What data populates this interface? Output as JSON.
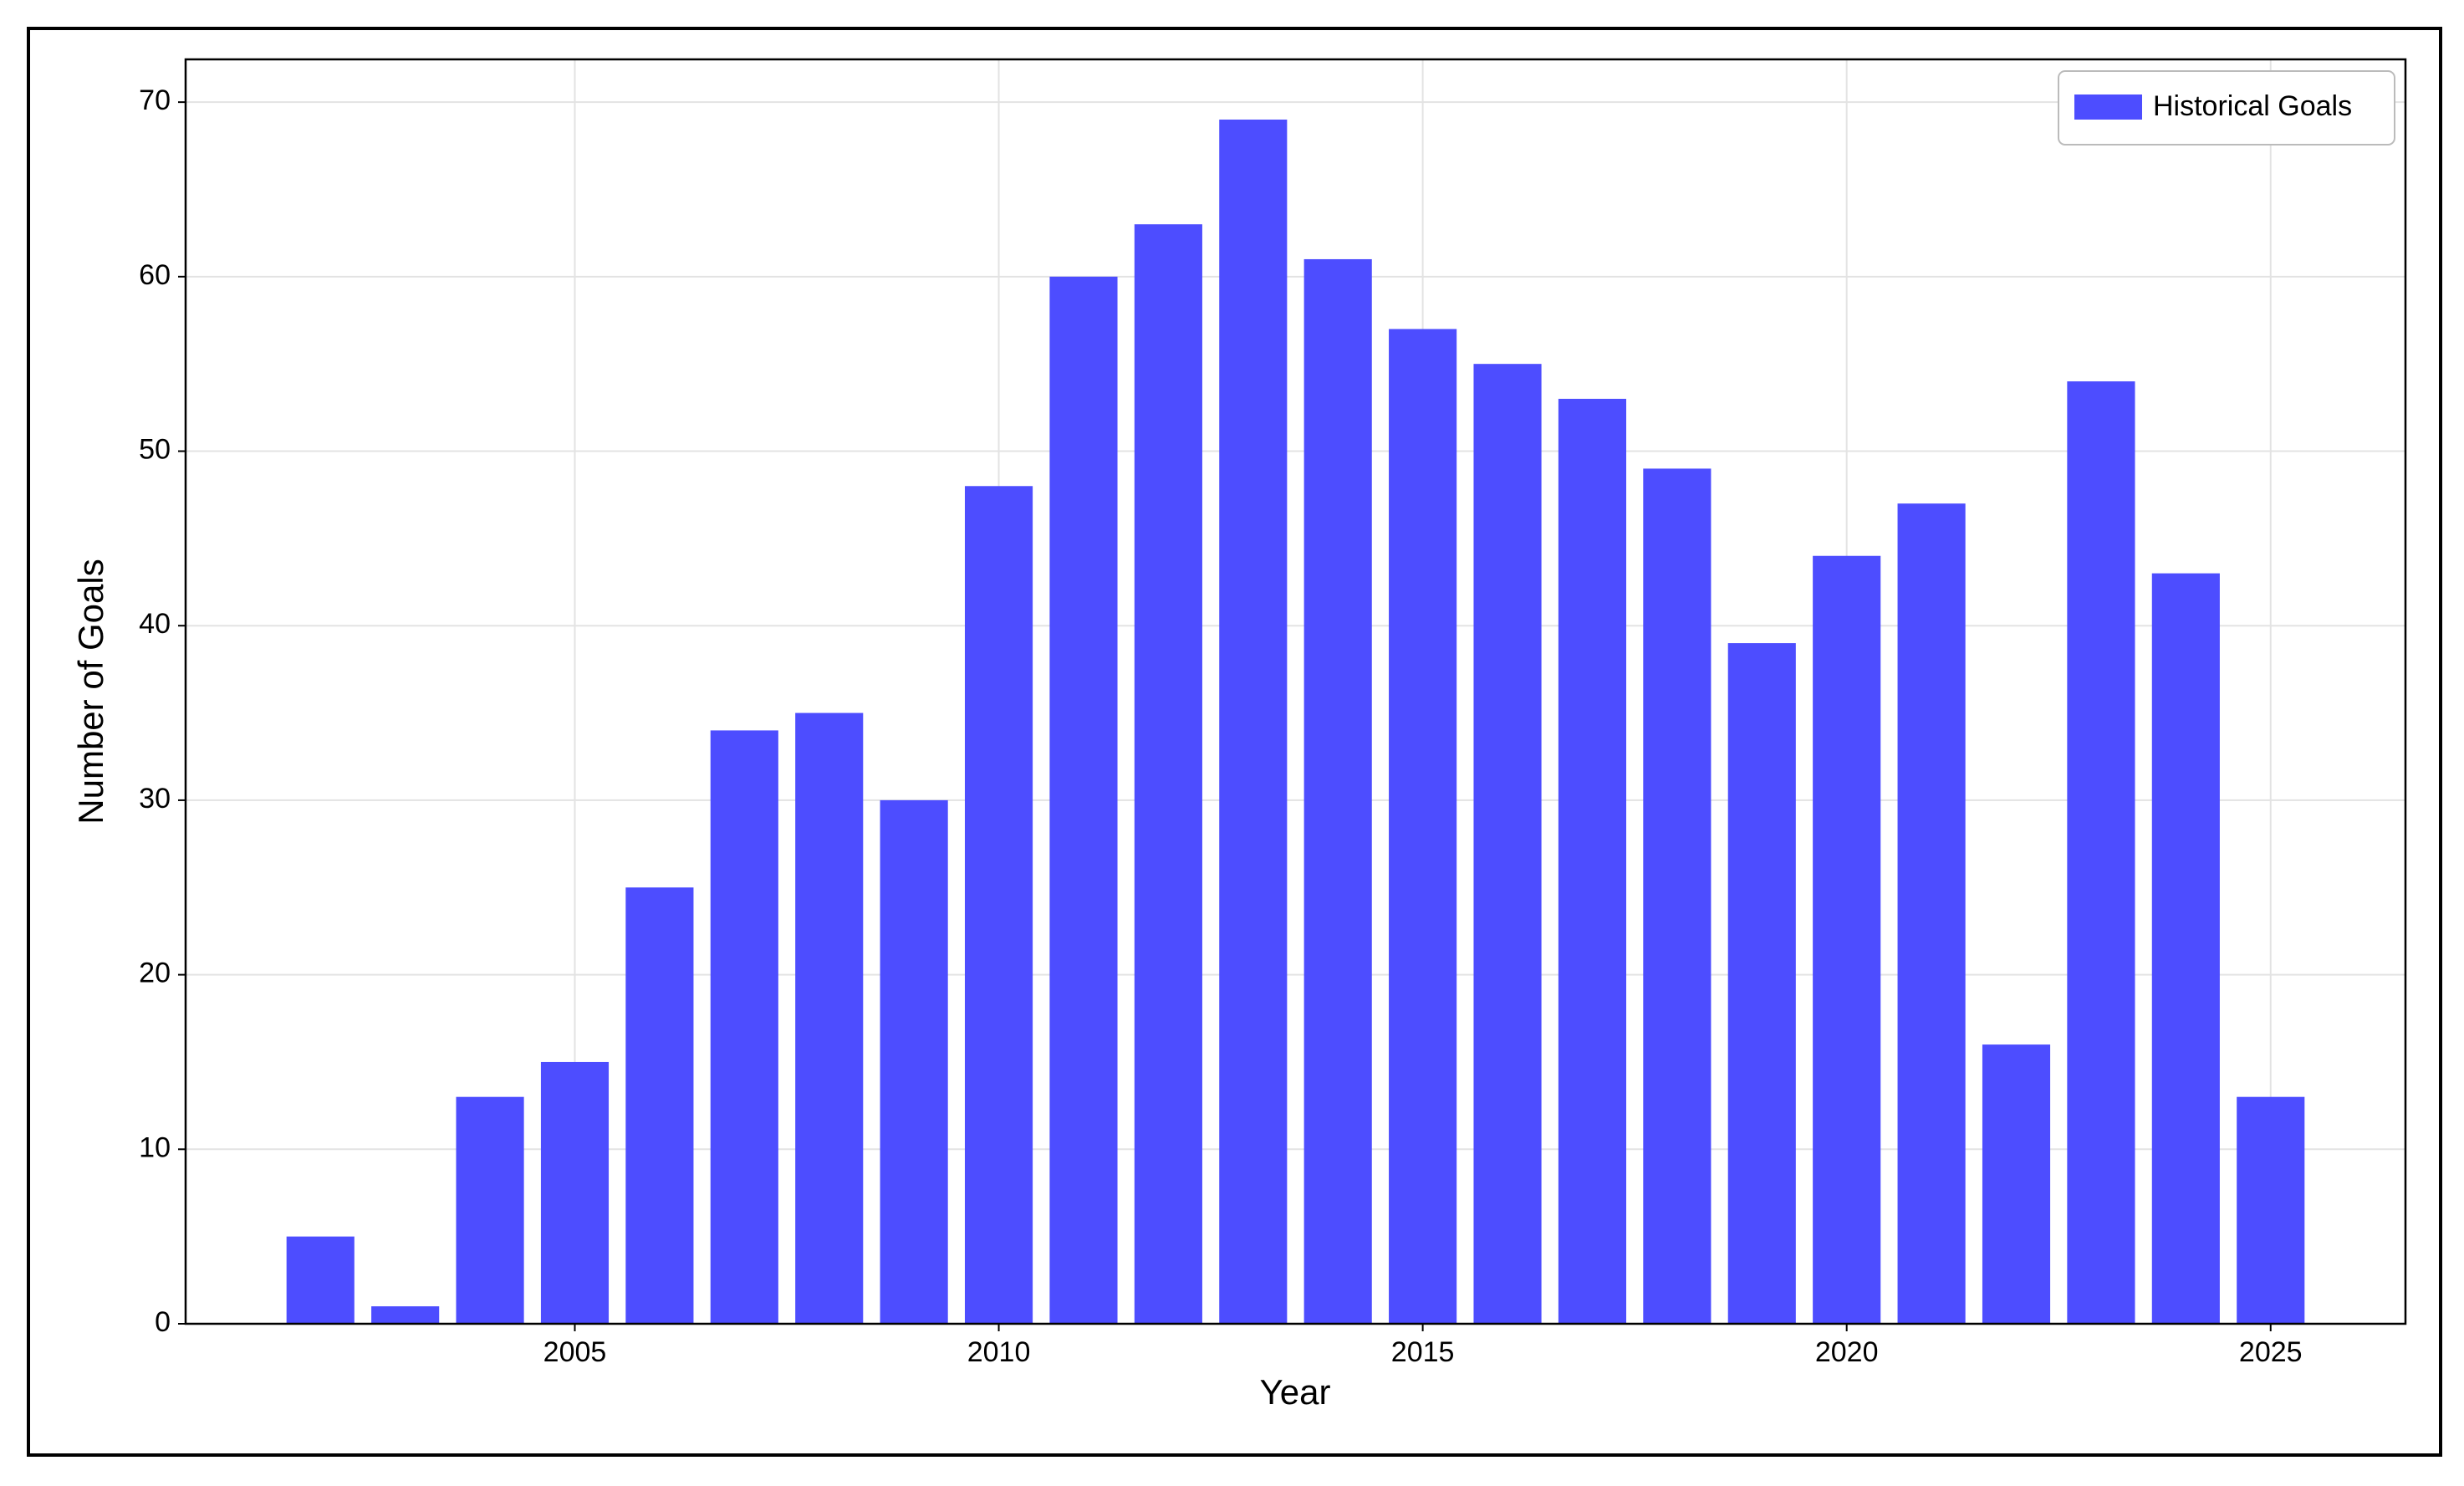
{
  "chart_data": {
    "type": "bar",
    "x_label": "Year",
    "y_label": "Number of Goals",
    "x": [
      2002,
      2003,
      2004,
      2005,
      2006,
      2007,
      2008,
      2009,
      2010,
      2011,
      2012,
      2013,
      2014,
      2015,
      2016,
      2017,
      2018,
      2019,
      2020,
      2021,
      2022,
      2023,
      2024,
      2025
    ],
    "series": [
      {
        "name": "Historical Goals",
        "color": "#4d4dff",
        "values": [
          5,
          1,
          13,
          15,
          25,
          34,
          35,
          30,
          48,
          60,
          63,
          69,
          61,
          57,
          55,
          53,
          49,
          39,
          44,
          47,
          16,
          54,
          43,
          13
        ]
      }
    ],
    "xlim": [
      2000.41,
      2026.59
    ],
    "xticks": [
      2005,
      2010,
      2015,
      2020,
      2025
    ],
    "ylim": [
      0,
      72.45
    ],
    "yticks": [
      0,
      10,
      20,
      30,
      40,
      50,
      60,
      70
    ],
    "grid": true,
    "legend": "upper right"
  }
}
